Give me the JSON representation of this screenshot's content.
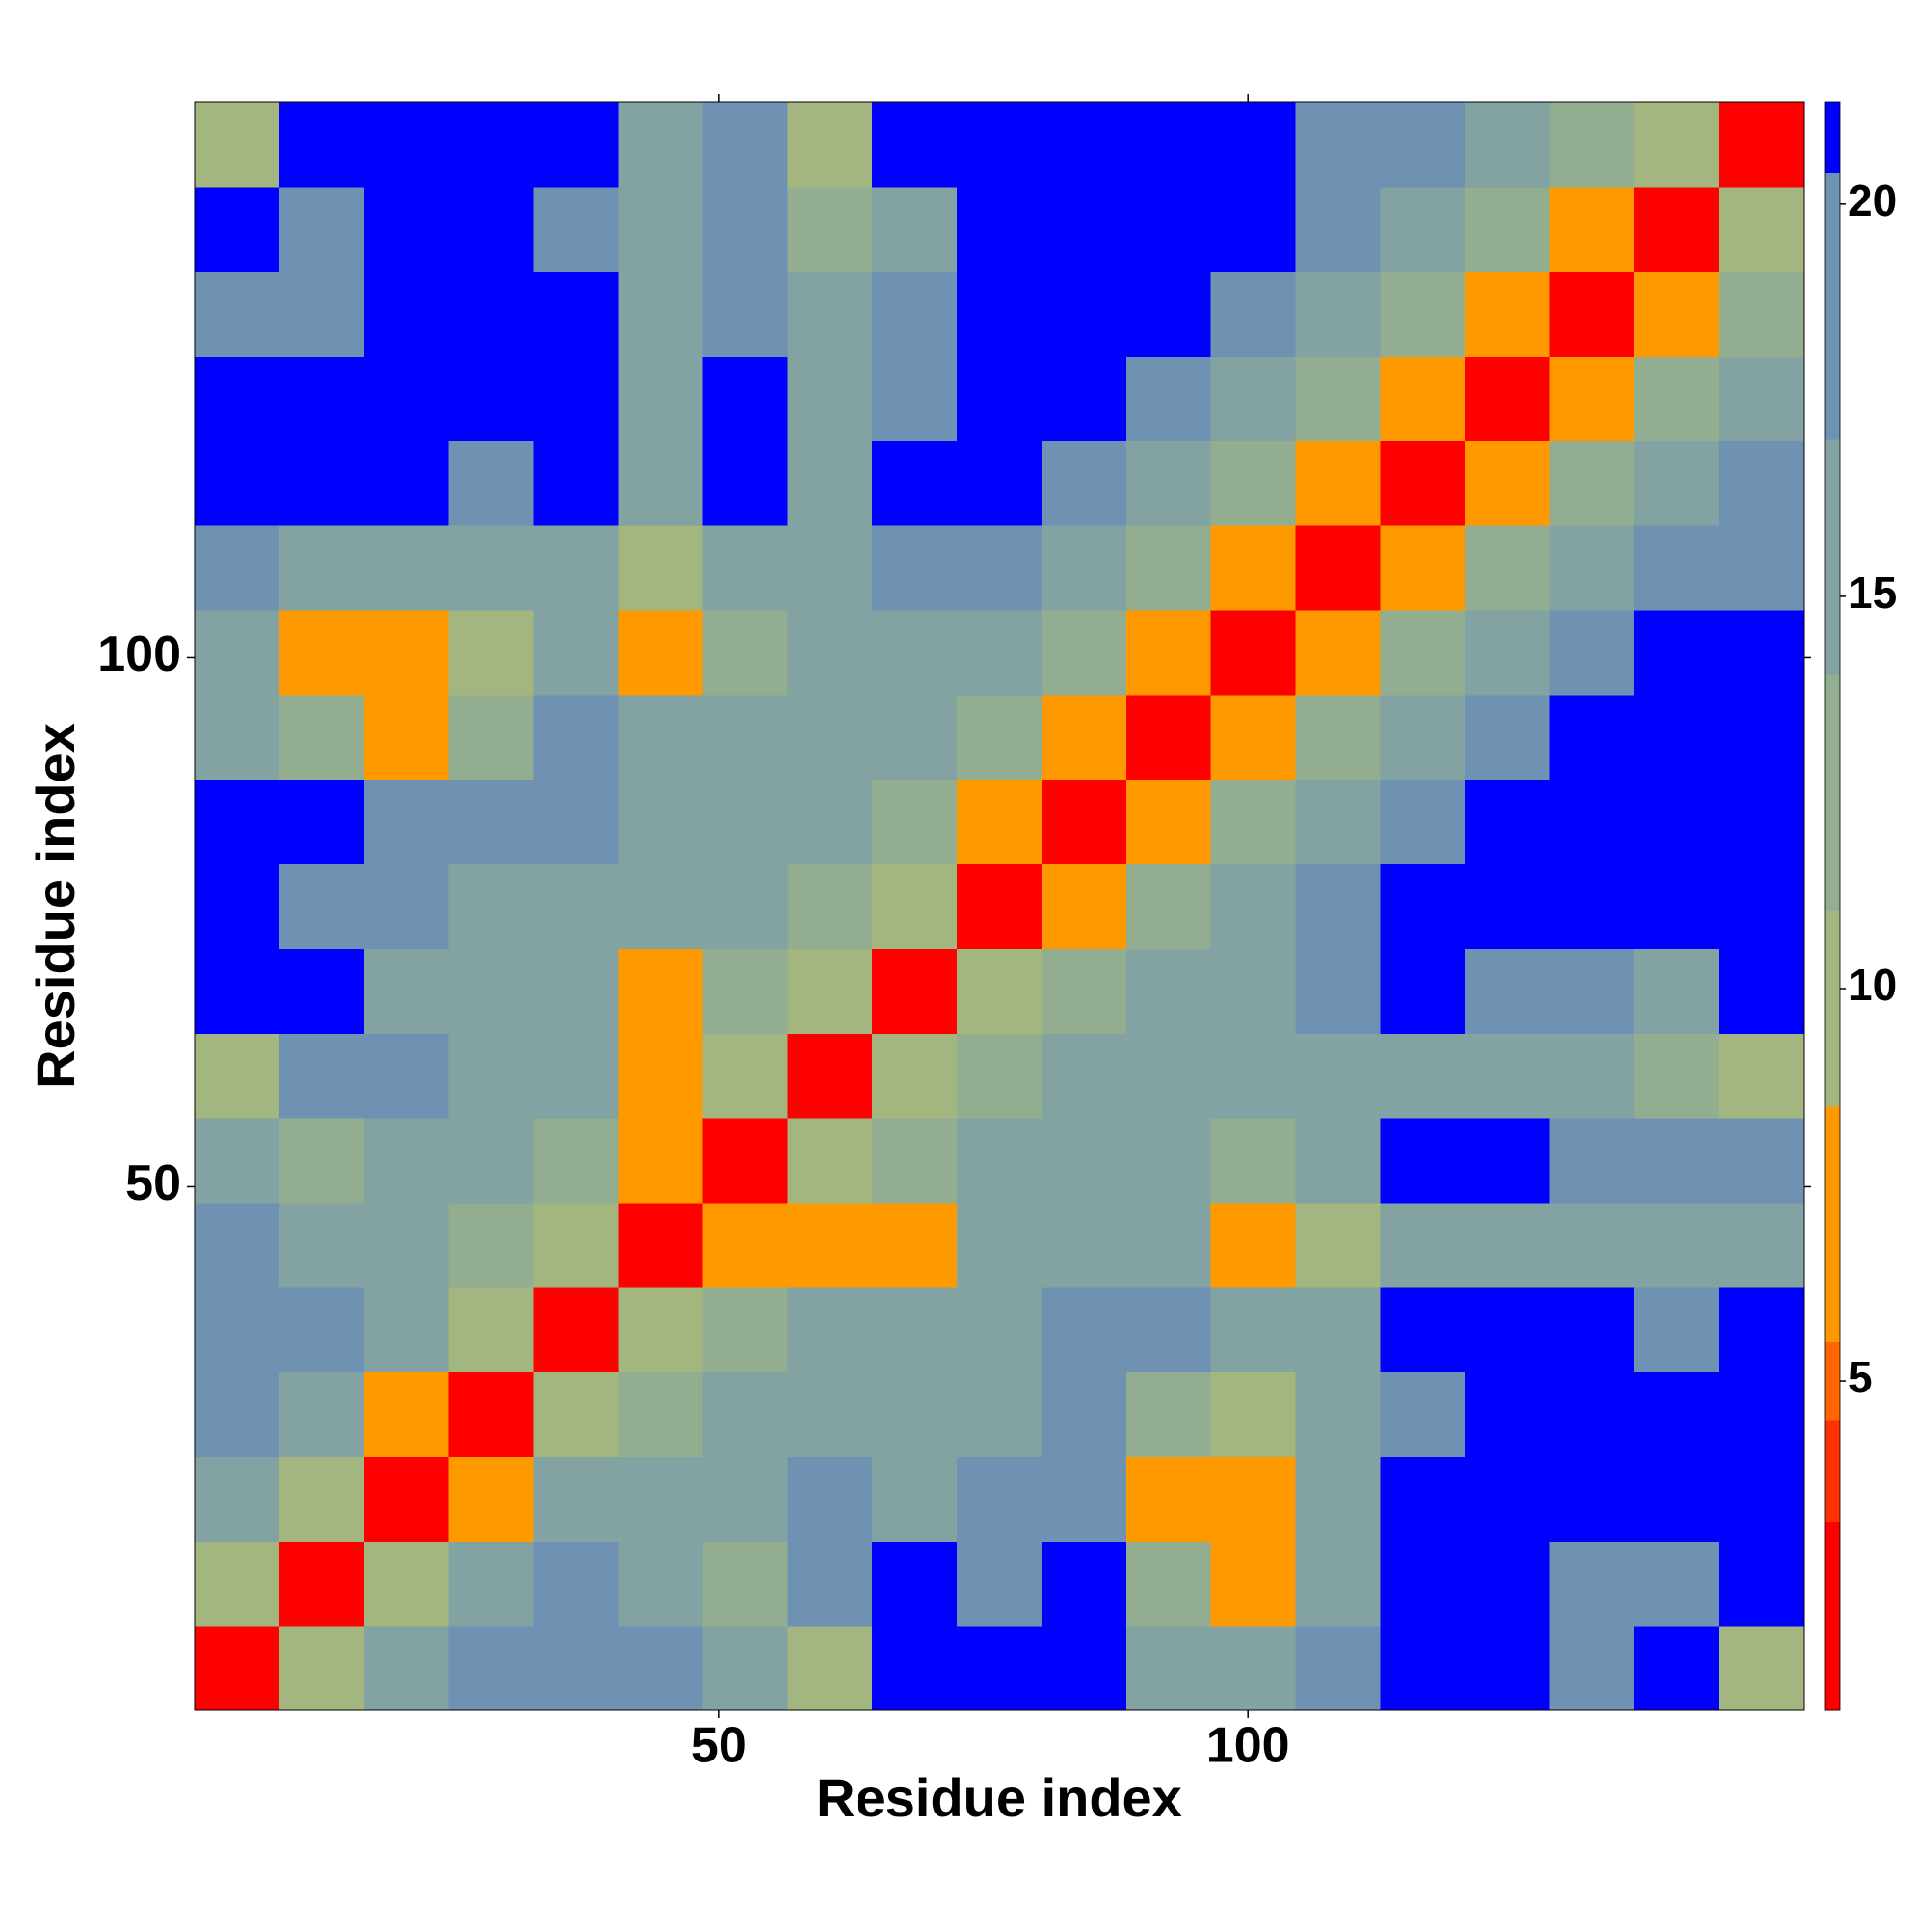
{
  "chart_data": {
    "type": "heatmap",
    "xlabel": "Residue index",
    "ylabel": "Residue index",
    "x": [
      4.5,
      12.5,
      20.5,
      28.5,
      36.5,
      44.5,
      52.5,
      60.5,
      68.5,
      76.5,
      84.5,
      92.5,
      100.5,
      108.5,
      116.5,
      124.5,
      132.5,
      140.5,
      148.5
    ],
    "y": [
      4.5,
      12.5,
      20.5,
      28.5,
      36.5,
      44.5,
      52.5,
      60.5,
      68.5,
      76.5,
      84.5,
      92.5,
      100.5,
      108.5,
      116.5,
      124.5,
      132.5,
      140.5,
      148.5
    ],
    "z": [
      [
        3,
        10,
        15,
        18,
        20,
        17,
        14,
        9,
        22,
        22,
        22,
        16,
        15,
        17,
        22,
        22,
        20,
        22,
        9
      ],
      [
        10,
        3,
        10,
        14,
        17,
        16,
        13,
        17,
        22,
        20,
        22,
        12,
        8,
        15,
        21,
        22,
        20,
        20,
        22
      ],
      [
        15,
        10,
        3,
        8,
        14,
        16,
        15,
        17,
        16,
        18,
        19,
        8,
        8,
        14,
        22,
        22,
        22,
        22,
        22
      ],
      [
        18,
        14,
        8,
        3,
        10,
        13,
        14,
        16,
        15,
        16,
        17,
        12,
        10,
        15,
        20,
        22,
        22,
        22,
        22
      ],
      [
        20,
        17,
        14,
        10,
        3,
        9,
        12,
        14,
        14,
        16,
        17,
        17,
        15,
        16,
        22,
        22,
        22,
        18,
        22
      ],
      [
        17,
        16,
        16,
        13,
        9,
        3,
        8,
        6,
        8,
        14,
        15,
        14,
        7,
        10,
        15,
        15,
        16,
        16,
        15
      ],
      [
        14,
        13,
        15,
        14,
        12,
        8,
        3,
        9,
        13,
        15,
        16,
        14,
        13,
        15,
        22,
        22,
        20,
        17,
        18
      ],
      [
        9,
        17,
        17,
        16,
        14,
        6,
        9,
        3,
        9,
        13,
        15,
        15,
        14,
        16,
        14,
        16,
        15,
        13,
        9
      ],
      [
        22,
        22,
        16,
        15,
        14,
        8,
        13,
        9,
        3,
        9,
        12,
        14,
        15,
        18,
        21,
        17,
        17,
        16,
        22
      ],
      [
        22,
        20,
        18,
        16,
        16,
        14,
        15,
        13,
        9,
        3,
        8,
        11,
        14,
        17,
        21,
        22,
        22,
        22,
        22
      ],
      [
        22,
        22,
        19,
        17,
        17,
        15,
        16,
        15,
        12,
        8,
        3,
        8,
        13,
        16,
        19,
        22,
        22,
        22,
        22
      ],
      [
        16,
        12,
        8,
        12,
        17,
        14,
        14,
        15,
        14,
        11,
        8,
        3,
        8,
        13,
        16,
        19,
        22,
        22,
        22
      ],
      [
        15,
        8,
        8,
        10,
        15,
        7,
        13,
        14,
        15,
        14,
        13,
        8,
        3,
        8,
        12,
        15,
        18,
        21,
        22
      ],
      [
        17,
        15,
        14,
        15,
        16,
        10,
        15,
        16,
        18,
        17,
        16,
        13,
        8,
        3,
        8,
        12,
        15,
        17,
        20
      ],
      [
        22,
        21,
        22,
        20,
        22,
        15,
        22,
        14,
        21,
        21,
        19,
        16,
        12,
        8,
        3,
        8,
        12,
        15,
        17
      ],
      [
        22,
        22,
        22,
        22,
        22,
        15,
        22,
        16,
        17,
        22,
        22,
        19,
        15,
        12,
        8,
        3,
        8,
        12,
        15
      ],
      [
        20,
        20,
        22,
        22,
        22,
        16,
        20,
        15,
        17,
        22,
        22,
        22,
        18,
        15,
        12,
        8,
        3,
        8,
        12
      ],
      [
        22,
        20,
        22,
        22,
        18,
        16,
        17,
        13,
        16,
        22,
        22,
        22,
        21,
        17,
        15,
        12,
        8,
        3,
        9
      ],
      [
        9,
        22,
        22,
        22,
        22,
        15,
        18,
        9,
        22,
        22,
        22,
        22,
        22,
        20,
        17,
        15,
        12,
        9,
        3
      ]
    ],
    "xlim": [
      0.5,
      152.5
    ],
    "ylim": [
      0.5,
      152.5
    ],
    "xticks": [
      50,
      100
    ],
    "yticks": [
      50,
      100
    ],
    "zlim": [
      0.8,
      21.3
    ],
    "zticks": [
      5,
      10,
      15,
      20
    ],
    "colorscale": [
      [
        0.8,
        "#ff0000"
      ],
      [
        3.2,
        "#ff3300"
      ],
      [
        4.5,
        "#ff6600"
      ],
      [
        5.5,
        "#ff9900"
      ],
      [
        8.5,
        "#a3b67f"
      ],
      [
        11,
        "#93ad91"
      ],
      [
        14,
        "#82a3a2"
      ],
      [
        17,
        "#6f92b3"
      ],
      [
        20.4,
        "#0000ff"
      ]
    ]
  }
}
